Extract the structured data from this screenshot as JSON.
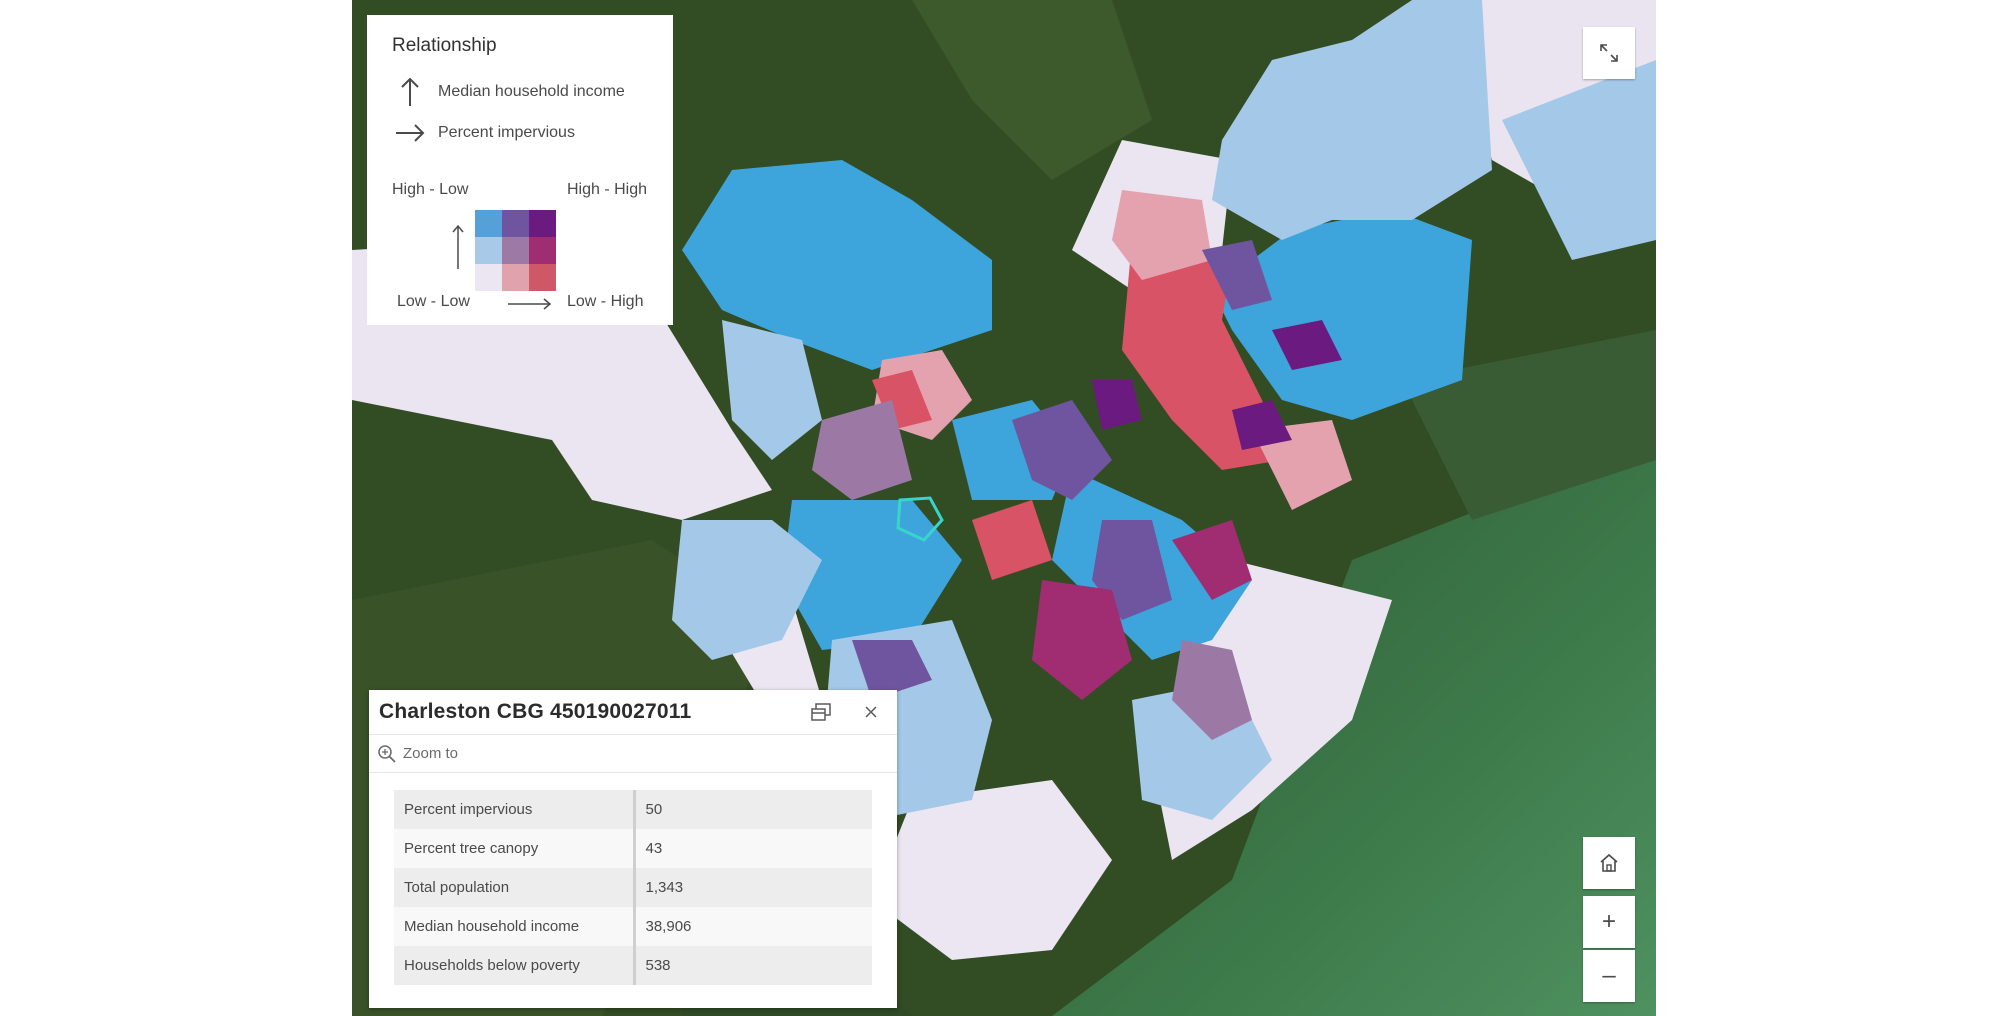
{
  "legend": {
    "title": "Relationship",
    "field_y": "Median household income",
    "field_x": "Percent impervious",
    "corner_high_low": "High - Low",
    "corner_high_high": "High - High",
    "corner_low_low": "Low - Low",
    "corner_low_high": "Low - High",
    "matrix_colors": [
      [
        "#55a0d9",
        "#6f55a0",
        "#6b1a7f"
      ],
      [
        "#a8c9e8",
        "#9d7aa6",
        "#a02c72"
      ],
      [
        "#ece6f2",
        "#e0a2ad",
        "#cf5868"
      ]
    ]
  },
  "popup": {
    "title": "Charleston CBG 450190027011",
    "zoom_label": "Zoom to",
    "rows": [
      {
        "label": "Percent impervious",
        "value": "50"
      },
      {
        "label": "Percent tree canopy",
        "value": "43"
      },
      {
        "label": "Total population",
        "value": "1,343"
      },
      {
        "label": "Median household income",
        "value": "38,906"
      },
      {
        "label": "Households below poverty",
        "value": "538"
      }
    ]
  },
  "controls": {
    "fullscreen_icon": "expand-icon",
    "home_icon": "home-icon",
    "zoom_in_label": "+",
    "zoom_out_label": "–"
  },
  "colors": {
    "water": "#2d5a3a",
    "land": "#304a22",
    "low_low": "#ece6f2",
    "high_low": "#3ea4dc"
  }
}
